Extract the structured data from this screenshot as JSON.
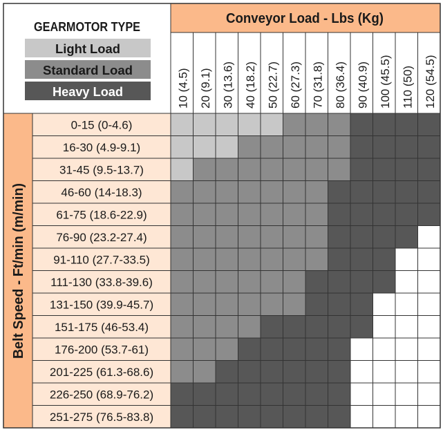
{
  "legend": {
    "title": "GEARMOTOR TYPE",
    "items": [
      {
        "key": "L",
        "label": "Light Load",
        "color": "#c8c8c8"
      },
      {
        "key": "S",
        "label": "Standard Load",
        "color": "#8c8c8c"
      },
      {
        "key": "H",
        "label": "Heavy Load",
        "color": "#575757"
      }
    ]
  },
  "colors": {
    "header_orange": "#fbb98a",
    "row_label_bg": "#fee7d5",
    "border": "#333333",
    "empty": "#ffffff"
  },
  "column_header": "Conveyor Load - Lbs (Kg)",
  "row_header": "Belt Speed - Ft/min (m/min)",
  "columns": [
    "10 (4.5)",
    "20 (9.1)",
    "30 (13.6)",
    "40 (18.2)",
    "50 (22.7)",
    "60 (27.3)",
    "70 (31.8)",
    "80 (36.4)",
    "90 (40.9)",
    "100 (45.5)",
    "110 (50)",
    "120 (54.5)"
  ],
  "rows": [
    "0-15 (0-4.6)",
    "16-30 (4.9-9.1)",
    "31-45 (9.5-13.7)",
    "46-60 (14-18.3)",
    "61-75 (18.6-22.9)",
    "76-90 (23.2-27.4)",
    "91-110 (27.7-33.5)",
    "111-130 (33.8-39.6)",
    "131-150 (39.9-45.7)",
    "151-175 (46-53.4)",
    "176-200 (53.7-61)",
    "201-225 (61.3-68.6)",
    "226-250 (68.9-76.2)",
    "251-275 (76.5-83.8)"
  ],
  "chart_data": {
    "type": "heatmap",
    "x_label": "Conveyor Load - Lbs (Kg)",
    "y_label": "Belt Speed - Ft/min (m/min)",
    "categories_x": [
      "10 (4.5)",
      "20 (9.1)",
      "30 (13.6)",
      "40 (18.2)",
      "50 (22.7)",
      "60 (27.3)",
      "70 (31.8)",
      "80 (36.4)",
      "90 (40.9)",
      "100 (45.5)",
      "110 (50)",
      "120 (54.5)"
    ],
    "categories_y": [
      "0-15 (0-4.6)",
      "16-30 (4.9-9.1)",
      "31-45 (9.5-13.7)",
      "46-60 (14-18.3)",
      "61-75 (18.6-22.9)",
      "76-90 (23.2-27.4)",
      "91-110 (27.7-33.5)",
      "111-130 (33.8-39.6)",
      "131-150 (39.9-45.7)",
      "151-175 (46-53.4)",
      "176-200 (53.7-61)",
      "201-225 (61.3-68.6)",
      "226-250 (68.9-76.2)",
      "251-275 (76.5-83.8)"
    ],
    "legend": {
      "L": "Light Load",
      "S": "Standard Load",
      "H": "Heavy Load",
      "": "none"
    },
    "values": [
      [
        "L",
        "L",
        "L",
        "L",
        "L",
        "S",
        "S",
        "S",
        "H",
        "H",
        "H",
        "H"
      ],
      [
        "L",
        "L",
        "L",
        "S",
        "S",
        "S",
        "S",
        "S",
        "H",
        "H",
        "H",
        "H"
      ],
      [
        "L",
        "S",
        "S",
        "S",
        "S",
        "S",
        "S",
        "S",
        "H",
        "H",
        "H",
        "H"
      ],
      [
        "S",
        "S",
        "S",
        "S",
        "S",
        "S",
        "S",
        "H",
        "H",
        "H",
        "H",
        "H"
      ],
      [
        "S",
        "S",
        "S",
        "S",
        "S",
        "S",
        "S",
        "H",
        "H",
        "H",
        "H",
        "H"
      ],
      [
        "S",
        "S",
        "S",
        "S",
        "S",
        "S",
        "S",
        "H",
        "H",
        "H",
        "H",
        ""
      ],
      [
        "S",
        "S",
        "S",
        "S",
        "S",
        "S",
        "S",
        "H",
        "H",
        "H",
        "",
        ""
      ],
      [
        "S",
        "S",
        "S",
        "S",
        "S",
        "S",
        "H",
        "H",
        "H",
        "H",
        "",
        ""
      ],
      [
        "S",
        "S",
        "S",
        "S",
        "S",
        "S",
        "H",
        "H",
        "H",
        "",
        "",
        ""
      ],
      [
        "S",
        "S",
        "S",
        "S",
        "H",
        "H",
        "H",
        "H",
        "H",
        "",
        "",
        ""
      ],
      [
        "S",
        "S",
        "S",
        "H",
        "H",
        "H",
        "H",
        "H",
        "",
        "",
        "",
        ""
      ],
      [
        "S",
        "S",
        "H",
        "H",
        "H",
        "H",
        "H",
        "H",
        "",
        "",
        "",
        ""
      ],
      [
        "H",
        "H",
        "H",
        "H",
        "H",
        "H",
        "H",
        "H",
        "",
        "",
        "",
        ""
      ],
      [
        "H",
        "H",
        "H",
        "H",
        "H",
        "H",
        "H",
        "H",
        "",
        "",
        "",
        ""
      ]
    ]
  }
}
